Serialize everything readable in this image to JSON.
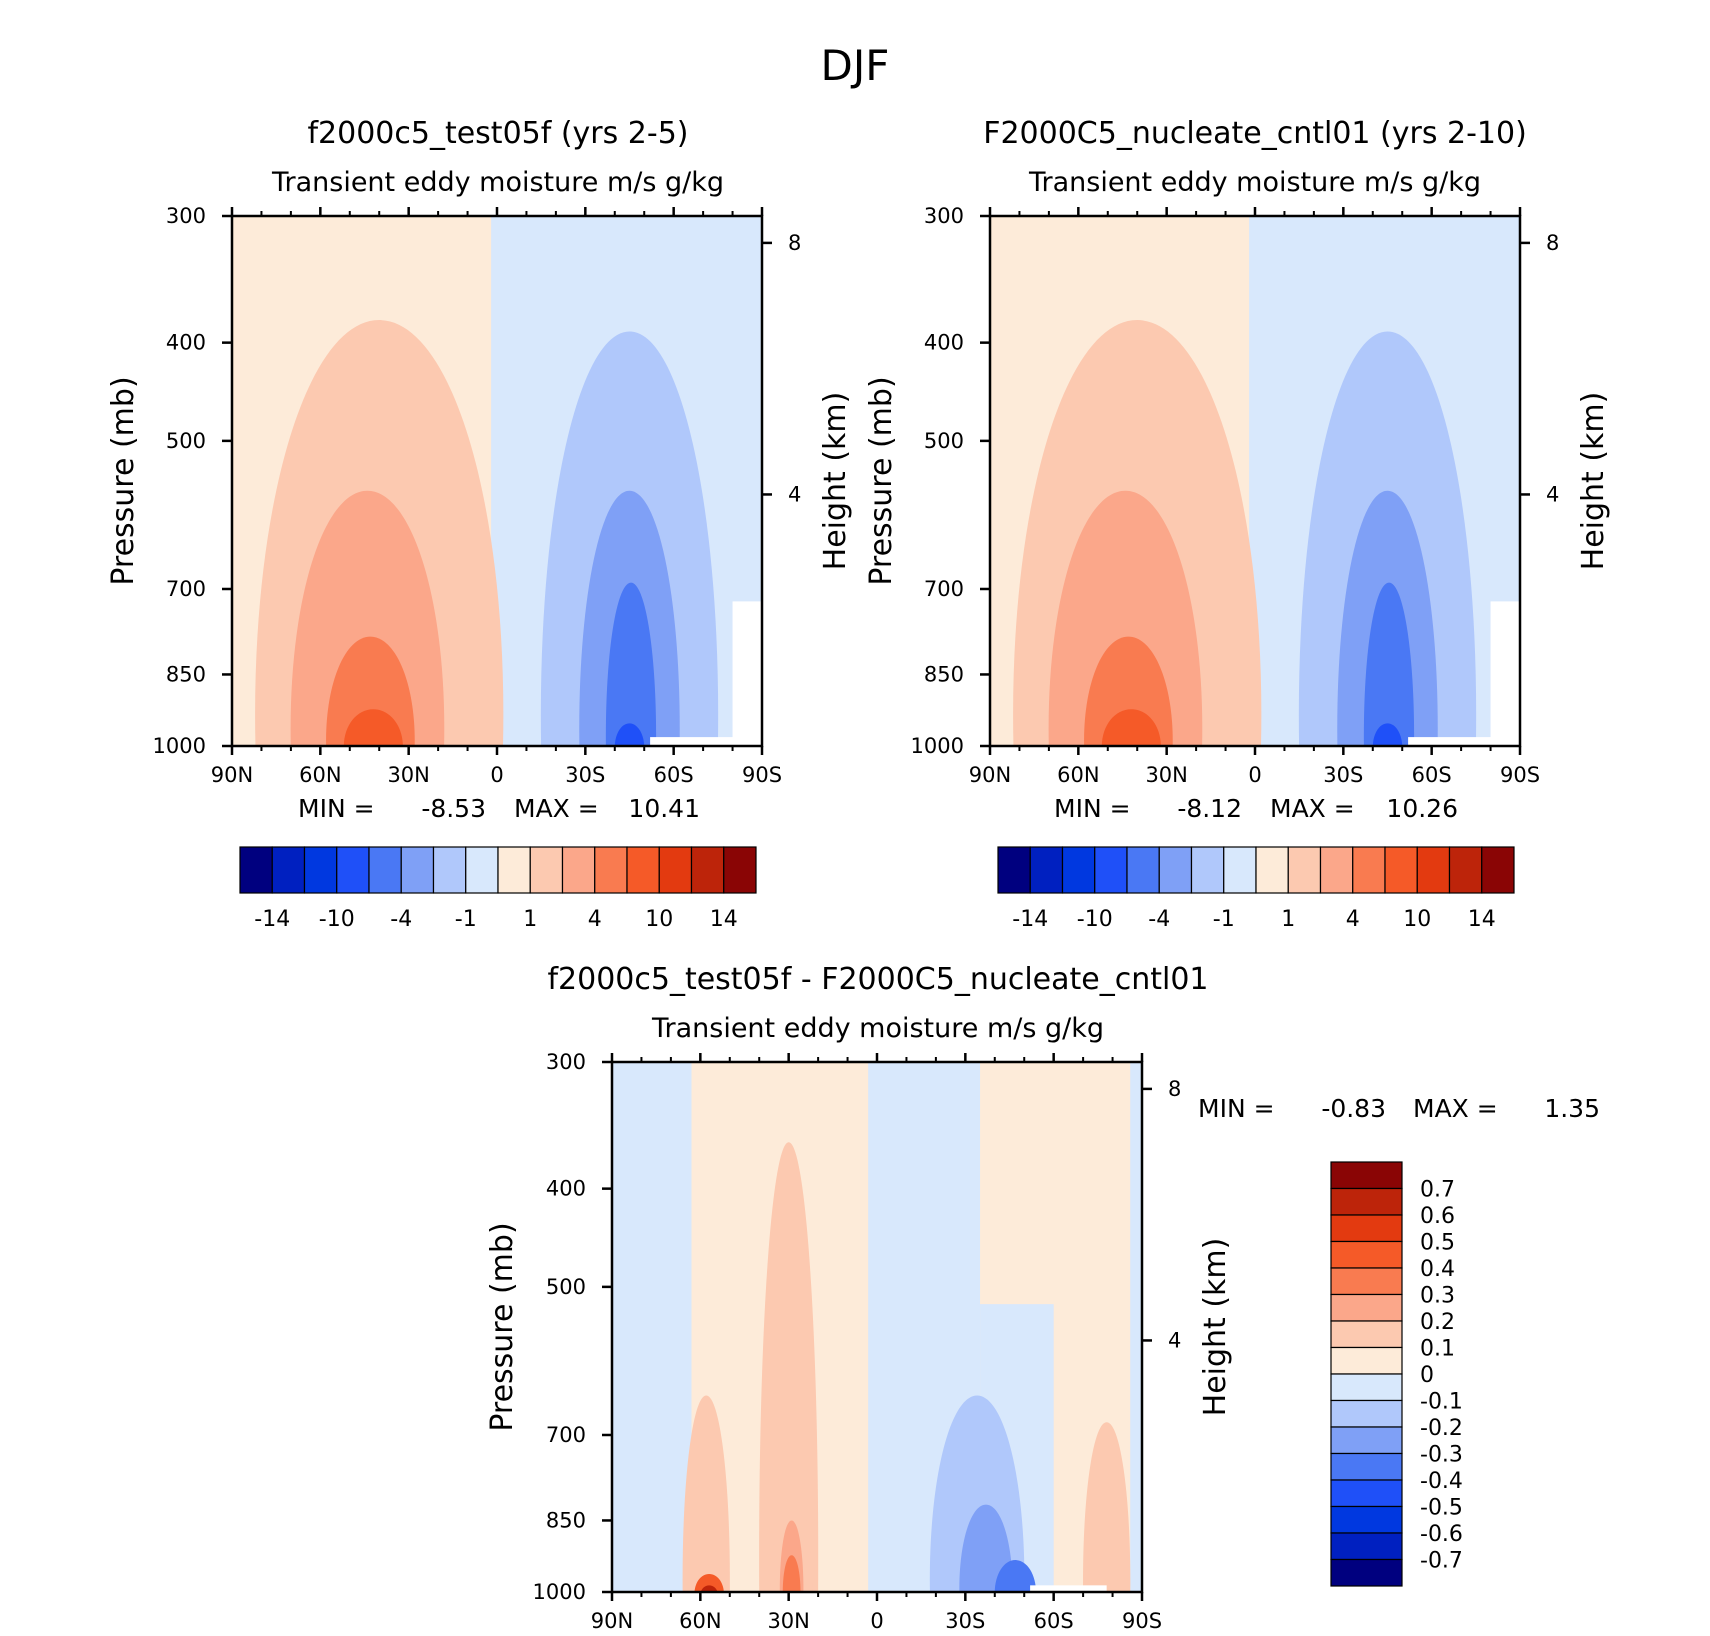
{
  "figure": {
    "title": "DJF"
  },
  "colors": {
    "main_scale": [
      "#00007f",
      "#0020c0",
      "#0038e0",
      "#1f50f8",
      "#4a78f4",
      "#7fa0f6",
      "#b0c8fb",
      "#d8e8fc",
      "#fdebd9",
      "#fcc9b0",
      "#fba78a",
      "#f97b50",
      "#f55a28",
      "#e33a10",
      "#bd240a",
      "#8a0505"
    ],
    "diff_scale": [
      "#00007f",
      "#0020c0",
      "#0038e0",
      "#1f50f8",
      "#4a78f4",
      "#7fa0f6",
      "#b0c8fb",
      "#d8e8fc",
      "#fdebd9",
      "#fcc9b0",
      "#fba78a",
      "#f97b50",
      "#f55a28",
      "#e33a10",
      "#bd240a",
      "#8a0505"
    ]
  },
  "chart_data": [
    {
      "type": "heatmap",
      "title": "f2000c5_test05f (yrs 2-5)",
      "subtitle": "Transient eddy moisture m/s g/kg",
      "ylabel": "Pressure (mb)",
      "ylabel_right": "Height (km)",
      "x_ticks": [
        "90N",
        "60N",
        "30N",
        "0",
        "30S",
        "60S",
        "90S"
      ],
      "y_ticks": [
        "300",
        "400",
        "500",
        "700",
        "850",
        "1000"
      ],
      "y_right_ticks": [
        "8",
        "4"
      ],
      "xlim": [
        90,
        -90
      ],
      "ylim": [
        1000,
        300
      ],
      "stats": {
        "min_label": "MIN =",
        "min": "-8.53",
        "max_label": "MAX =",
        "max": "10.41"
      },
      "colorbar_labels": [
        "-14",
        "-10",
        "-4",
        "-1",
        "1",
        "4",
        "10",
        "14"
      ],
      "contour_levels": [
        -14,
        -12,
        -10,
        -8,
        -4,
        -2,
        -1,
        0,
        1,
        2,
        4,
        8,
        10,
        12,
        14
      ],
      "extremes": {
        "min": -8.53,
        "max": 10.41
      }
    },
    {
      "type": "heatmap",
      "title": "F2000C5_nucleate_cntl01 (yrs 2-10)",
      "subtitle": "Transient eddy moisture m/s g/kg",
      "ylabel": "Pressure (mb)",
      "ylabel_right": "Height (km)",
      "x_ticks": [
        "90N",
        "60N",
        "30N",
        "0",
        "30S",
        "60S",
        "90S"
      ],
      "y_ticks": [
        "300",
        "400",
        "500",
        "700",
        "850",
        "1000"
      ],
      "y_right_ticks": [
        "8",
        "4"
      ],
      "xlim": [
        90,
        -90
      ],
      "ylim": [
        1000,
        300
      ],
      "stats": {
        "min_label": "MIN =",
        "min": "-8.12",
        "max_label": "MAX =",
        "max": "10.26"
      },
      "colorbar_labels": [
        "-14",
        "-10",
        "-4",
        "-1",
        "1",
        "4",
        "10",
        "14"
      ],
      "contour_levels": [
        -14,
        -12,
        -10,
        -8,
        -4,
        -2,
        -1,
        0,
        1,
        2,
        4,
        8,
        10,
        12,
        14
      ],
      "extremes": {
        "min": -8.12,
        "max": 10.26
      }
    },
    {
      "type": "heatmap",
      "title": "f2000c5_test05f - F2000C5_nucleate_cntl01",
      "subtitle": "Transient eddy moisture m/s g/kg",
      "ylabel": "Pressure (mb)",
      "ylabel_right": "Height (km)",
      "x_ticks": [
        "90N",
        "60N",
        "30N",
        "0",
        "30S",
        "60S",
        "90S"
      ],
      "y_ticks": [
        "300",
        "400",
        "500",
        "700",
        "850",
        "1000"
      ],
      "y_right_ticks": [
        "8",
        "4"
      ],
      "xlim": [
        90,
        -90
      ],
      "ylim": [
        1000,
        300
      ],
      "stats": {
        "min_label": "MIN =",
        "min": "-0.83",
        "max_label": "MAX =",
        "max": "1.35"
      },
      "colorbar_labels": [
        "0.7",
        "0.6",
        "0.5",
        "0.4",
        "0.3",
        "0.2",
        "0.1",
        "0",
        "-0.1",
        "-0.2",
        "-0.3",
        "-0.4",
        "-0.5",
        "-0.6",
        "-0.7"
      ],
      "contour_levels": [
        -0.7,
        -0.6,
        -0.5,
        -0.4,
        -0.3,
        -0.2,
        -0.1,
        0,
        0.1,
        0.2,
        0.3,
        0.4,
        0.5,
        0.6,
        0.7
      ],
      "extremes": {
        "min": -0.83,
        "max": 1.35
      }
    }
  ]
}
